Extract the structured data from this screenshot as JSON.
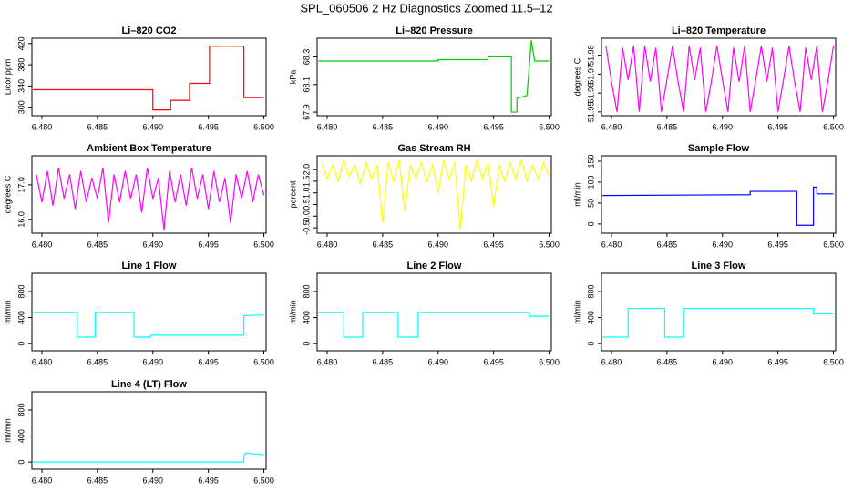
{
  "title": "SPL_060506  2 Hz Diagnostics Zoomed 11.5–12",
  "chart_data": [
    {
      "type": "line",
      "title": "Li–820 CO2",
      "ylabel": "Licor ppm",
      "color": "#ff0000",
      "x": [
        6.4792,
        6.49,
        6.49,
        6.4916,
        6.4916,
        6.4933,
        6.4933,
        6.4951,
        6.4951,
        6.4982,
        6.4982,
        6.5
      ],
      "values": [
        333,
        333,
        295,
        295,
        313,
        313,
        345,
        345,
        415,
        415,
        318,
        318
      ],
      "xlim": [
        6.4791,
        6.5002
      ],
      "xticks": [
        {
          "value": 6.48,
          "label": "6.480"
        },
        6.485,
        {
          "value": 6.49,
          "label": "6.490"
        },
        6.495,
        {
          "value": 6.5,
          "label": "6.500"
        }
      ],
      "ylim": [
        284,
        430
      ],
      "yticks": [
        300,
        340,
        380,
        420
      ]
    },
    {
      "type": "line",
      "title": "Li–820 Pressure",
      "ylabel": "kPa",
      "color": "#00cc00",
      "x": [
        6.4792,
        6.49,
        6.49,
        6.4945,
        6.4945,
        6.4966,
        6.4966,
        6.4971,
        6.4971,
        6.498,
        6.4984,
        6.4987,
        6.5
      ],
      "values": [
        68.27,
        68.27,
        68.28,
        68.28,
        68.3,
        68.3,
        67.9,
        67.9,
        68.0,
        68.02,
        68.42,
        68.27,
        68.27
      ],
      "xlim": [
        6.4791,
        6.5002
      ],
      "xticks": [
        {
          "value": 6.48,
          "label": "6.480"
        },
        6.485,
        {
          "value": 6.49,
          "label": "6.490"
        },
        6.495,
        {
          "value": 6.5,
          "label": "6.500"
        }
      ],
      "ylim": [
        67.874,
        68.435
      ],
      "yticks": [
        67.9,
        68.1,
        68.3
      ]
    },
    {
      "type": "line",
      "title": "Li–820 Temperature",
      "ylabel": "degrees C",
      "color": "#ff00ff",
      "x": [
        6.4795,
        6.48,
        6.4805,
        6.481,
        6.4815,
        6.482,
        6.4825,
        6.483,
        6.4835,
        6.484,
        6.4845,
        6.485,
        6.4855,
        6.486,
        6.4865,
        6.487,
        6.4875,
        6.488,
        6.4885,
        6.489,
        6.4895,
        6.49,
        6.4905,
        6.491,
        6.4915,
        6.492,
        6.4925,
        6.493,
        6.4935,
        6.494,
        6.4945,
        6.495,
        6.4955,
        6.496,
        6.4965,
        6.497,
        6.4975,
        6.498,
        6.4985,
        6.499,
        6.4995,
        6.5
      ],
      "values": [
        51.985,
        51.966,
        51.95,
        51.984,
        51.967,
        51.985,
        51.95,
        51.985,
        51.966,
        51.984,
        51.95,
        51.967,
        51.985,
        51.966,
        51.95,
        51.985,
        51.967,
        51.984,
        51.95,
        51.966,
        51.985,
        51.967,
        51.95,
        51.984,
        51.966,
        51.985,
        51.95,
        51.967,
        51.985,
        51.966,
        51.984,
        51.95,
        51.967,
        51.985,
        51.966,
        51.95,
        51.984,
        51.967,
        51.985,
        51.95,
        51.966,
        51.985
      ],
      "xlim": [
        6.4791,
        6.5002
      ],
      "xticks": [
        {
          "value": 6.48,
          "label": "6.480"
        },
        6.485,
        {
          "value": 6.49,
          "label": "6.490"
        },
        6.495,
        {
          "value": 6.5,
          "label": "6.500"
        }
      ],
      "ylim": [
        51.948,
        51.989
      ],
      "yticks": [
        51.95,
        51.96,
        51.97,
        51.98
      ]
    },
    {
      "type": "line",
      "title": "Ambient Box Temperature",
      "ylabel": "degrees C",
      "color": "#ff00ff",
      "x": [
        6.4795,
        6.48,
        6.4805,
        6.481,
        6.4815,
        6.482,
        6.4825,
        6.483,
        6.4835,
        6.484,
        6.4845,
        6.485,
        6.4855,
        6.486,
        6.4865,
        6.487,
        6.4875,
        6.488,
        6.4885,
        6.489,
        6.4895,
        6.49,
        6.4905,
        6.491,
        6.4915,
        6.492,
        6.4925,
        6.493,
        6.4935,
        6.494,
        6.4945,
        6.495,
        6.4955,
        6.496,
        6.4965,
        6.497,
        6.4975,
        6.498,
        6.4985,
        6.499,
        6.4995,
        6.5
      ],
      "values": [
        17.3,
        16.5,
        17.4,
        16.4,
        17.5,
        16.6,
        17.3,
        16.3,
        17.4,
        16.5,
        17.2,
        16.6,
        17.5,
        15.9,
        17.3,
        16.5,
        17.4,
        16.6,
        17.3,
        16.2,
        17.5,
        16.6,
        17.2,
        15.7,
        17.4,
        16.5,
        17.3,
        16.4,
        17.5,
        16.6,
        17.3,
        16.3,
        17.4,
        16.5,
        17.2,
        15.9,
        17.3,
        16.6,
        17.4,
        16.5,
        17.3,
        16.7
      ],
      "xlim": [
        6.4791,
        6.5002
      ],
      "xticks": [
        {
          "value": 6.48,
          "label": "6.480"
        },
        6.485,
        {
          "value": 6.49,
          "label": "6.490"
        },
        6.495,
        {
          "value": 6.5,
          "label": "6.500"
        }
      ],
      "ylim": [
        15.6,
        17.84
      ],
      "yticks": [
        {
          "value": 16,
          "label": "16.0"
        },
        {
          "value": 17,
          "label": "17.0"
        }
      ]
    },
    {
      "type": "line",
      "title": "Gas Stream RH",
      "ylabel": "percent",
      "color": "#ffff00",
      "x": [
        6.4795,
        6.48,
        6.4805,
        6.481,
        6.4815,
        6.482,
        6.4825,
        6.483,
        6.4835,
        6.484,
        6.4845,
        6.485,
        6.4855,
        6.486,
        6.4865,
        6.487,
        6.4875,
        6.488,
        6.4885,
        6.489,
        6.4895,
        6.49,
        6.4905,
        6.491,
        6.4915,
        6.492,
        6.4925,
        6.493,
        6.4935,
        6.494,
        6.4945,
        6.495,
        6.4955,
        6.496,
        6.4965,
        6.497,
        6.4975,
        6.498,
        6.4985,
        6.499,
        6.4995,
        6.5
      ],
      "values": [
        2.3,
        1.6,
        2.2,
        1.5,
        2.4,
        1.7,
        2.2,
        1.4,
        2.3,
        1.6,
        2.2,
        -0.3,
        2.3,
        1.5,
        2.4,
        0.2,
        2.2,
        1.6,
        2.3,
        1.5,
        2.2,
        1.0,
        2.4,
        1.6,
        2.3,
        -0.6,
        2.2,
        1.5,
        2.4,
        1.6,
        2.3,
        0.4,
        2.2,
        1.5,
        2.3,
        1.6,
        2.4,
        1.5,
        2.2,
        1.6,
        2.3,
        1.7
      ],
      "xlim": [
        6.4791,
        6.5002
      ],
      "xticks": [
        {
          "value": 6.48,
          "label": "6.480"
        },
        6.485,
        {
          "value": 6.49,
          "label": "6.490"
        },
        6.495,
        {
          "value": 6.5,
          "label": "6.500"
        }
      ],
      "ylim": [
        -0.73,
        2.59
      ],
      "yticks": [
        -0.5,
        {
          "value": 0,
          "label": "0.0"
        },
        0.5,
        {
          "value": 1,
          "label": "1.0"
        },
        1.5,
        {
          "value": 2,
          "label": "2.0"
        }
      ]
    },
    {
      "type": "line",
      "title": "Sample Flow",
      "ylabel": "ml/min",
      "color": "#0000ff",
      "x": [
        6.4792,
        6.4925,
        6.4925,
        6.4967,
        6.4967,
        6.4982,
        6.4982,
        6.4985,
        6.4985,
        6.5
      ],
      "values": [
        68,
        70,
        78,
        78,
        -3,
        -3,
        88,
        88,
        72,
        72
      ],
      "xlim": [
        6.4791,
        6.5002
      ],
      "xticks": [
        {
          "value": 6.48,
          "label": "6.480"
        },
        6.485,
        {
          "value": 6.49,
          "label": "6.490"
        },
        6.495,
        {
          "value": 6.5,
          "label": "6.500"
        }
      ],
      "ylim": [
        -22,
        163
      ],
      "yticks": [
        0,
        50,
        100,
        150
      ]
    },
    {
      "type": "line",
      "title": "Line 1 Flow",
      "ylabel": "ml/min",
      "color": "#00ffff",
      "x": [
        6.4792,
        6.4832,
        6.4832,
        6.4848,
        6.4848,
        6.4883,
        6.4883,
        6.4898,
        6.4898,
        6.4982,
        6.4982,
        6.5
      ],
      "values": [
        480,
        480,
        100,
        100,
        480,
        480,
        100,
        100,
        130,
        130,
        430,
        440
      ],
      "xlim": [
        6.4791,
        6.5002
      ],
      "xticks": [
        {
          "value": 6.48,
          "label": "6.480"
        },
        6.485,
        {
          "value": 6.49,
          "label": "6.490"
        },
        6.495,
        {
          "value": 6.5,
          "label": "6.500"
        }
      ],
      "ylim": [
        -110,
        1080
      ],
      "yticks": [
        0,
        400,
        800
      ]
    },
    {
      "type": "line",
      "title": "Line 2 Flow",
      "ylabel": "ml/min",
      "color": "#00ffff",
      "x": [
        6.4792,
        6.4815,
        6.4815,
        6.4832,
        6.4832,
        6.4864,
        6.4864,
        6.4882,
        6.4882,
        6.4982,
        6.4982,
        6.5
      ],
      "values": [
        480,
        480,
        100,
        100,
        480,
        480,
        100,
        100,
        480,
        480,
        420,
        420
      ],
      "xlim": [
        6.4791,
        6.5002
      ],
      "xticks": [
        {
          "value": 6.48,
          "label": "6.480"
        },
        6.485,
        {
          "value": 6.49,
          "label": "6.490"
        },
        6.495,
        {
          "value": 6.5,
          "label": "6.500"
        }
      ],
      "ylim": [
        -110,
        1080
      ],
      "yticks": [
        0,
        400,
        800
      ]
    },
    {
      "type": "line",
      "title": "Line 3 Flow",
      "ylabel": "ml/min",
      "color": "#00ffff",
      "x": [
        6.4792,
        6.4815,
        6.4815,
        6.4848,
        6.4848,
        6.4865,
        6.4865,
        6.4982,
        6.4982,
        6.5
      ],
      "values": [
        100,
        100,
        540,
        540,
        100,
        100,
        540,
        540,
        460,
        460
      ],
      "xlim": [
        6.4791,
        6.5002
      ],
      "xticks": [
        {
          "value": 6.48,
          "label": "6.480"
        },
        6.485,
        {
          "value": 6.49,
          "label": "6.490"
        },
        6.495,
        {
          "value": 6.5,
          "label": "6.500"
        }
      ],
      "ylim": [
        -110,
        1080
      ],
      "yticks": [
        0,
        400,
        800
      ]
    },
    {
      "type": "line",
      "title": "Line 4 (LT) Flow",
      "ylabel": "ml/min",
      "color": "#00ffff",
      "x": [
        6.4792,
        6.4982,
        6.4982,
        6.4984,
        6.5
      ],
      "values": [
        0,
        0,
        110,
        140,
        110
      ],
      "xlim": [
        6.4791,
        6.5002
      ],
      "xticks": [
        {
          "value": 6.48,
          "label": "6.480"
        },
        6.485,
        {
          "value": 6.49,
          "label": "6.490"
        },
        6.495,
        {
          "value": 6.5,
          "label": "6.500"
        }
      ],
      "ylim": [
        -110,
        1080
      ],
      "yticks": [
        0,
        400,
        800
      ]
    }
  ]
}
